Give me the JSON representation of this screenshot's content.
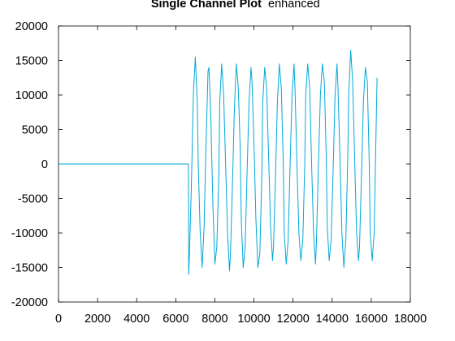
{
  "chart_data": {
    "type": "line",
    "title": "Single Channel Plot",
    "subtitle": "enhanced",
    "xlabel": "",
    "ylabel": "",
    "xlim": [
      0,
      18000
    ],
    "ylim": [
      -20000,
      20000
    ],
    "xticks": [
      0,
      2000,
      4000,
      6000,
      8000,
      10000,
      12000,
      14000,
      16000,
      18000
    ],
    "xtick_labels": [
      "0",
      "2000",
      "4000",
      "6000",
      "8000",
      "10000",
      "12000",
      "14000",
      "16000",
      "18000"
    ],
    "yticks": [
      -20000,
      -15000,
      -10000,
      -5000,
      0,
      5000,
      10000,
      15000,
      20000
    ],
    "ytick_labels": [
      "-20000",
      "-15000",
      "-10000",
      "-5000",
      "0",
      "5000",
      "10000",
      "15000",
      "20000"
    ],
    "grid": false,
    "series_color": "#00a8d8",
    "series": [
      {
        "x": [
          0,
          6650,
          6660,
          6700,
          6800,
          6900,
          7000,
          7100,
          7150,
          7250,
          7350,
          7450,
          7550,
          7650,
          7700,
          7800,
          7900,
          8000,
          8100,
          8200,
          8250,
          8350,
          8450,
          8550,
          8650,
          8750,
          8800,
          8900,
          9000,
          9100,
          9200,
          9300,
          9350,
          9450,
          9550,
          9650,
          9750,
          9850,
          9900,
          10000,
          10100,
          10200,
          10300,
          10400,
          10450,
          10550,
          10650,
          10750,
          10850,
          10950,
          11000,
          11100,
          11200,
          11300,
          11400,
          11500,
          11550,
          11650,
          11750,
          11850,
          11950,
          12050,
          12100,
          12200,
          12300,
          12400,
          12500,
          12600,
          12650,
          12750,
          12850,
          12950,
          13050,
          13150,
          13200,
          13300,
          13400,
          13500,
          13600,
          13700,
          13750,
          13850,
          13950,
          14050,
          14150,
          14250,
          14300,
          14400,
          14500,
          14600,
          14700,
          14800,
          14850,
          14950,
          15050,
          15150,
          15250,
          15350,
          15400,
          15500,
          15600,
          15700,
          15800,
          15900,
          15950,
          16050,
          16150,
          16250,
          16300
        ],
        "y": [
          0,
          0,
          -16000,
          -13000,
          -3000,
          10000,
          15500,
          9000,
          0,
          -10000,
          -15000,
          -9000,
          3000,
          13500,
          14000,
          6000,
          -6000,
          -14500,
          -12000,
          -2000,
          9000,
          14500,
          10000,
          0,
          -10000,
          -15500,
          -13000,
          -3000,
          8000,
          14500,
          11000,
          2000,
          -8000,
          -15000,
          -12000,
          -1000,
          9000,
          14000,
          12000,
          3000,
          -8000,
          -15000,
          -13000,
          -2000,
          9000,
          14000,
          11000,
          1000,
          -9000,
          -14000,
          -12000,
          -2000,
          9000,
          14500,
          11000,
          0,
          -10000,
          -14500,
          -11000,
          0,
          10000,
          14500,
          11000,
          0,
          -10000,
          -14000,
          -11000,
          0,
          10000,
          14500,
          11000,
          0,
          -10000,
          -14500,
          -11000,
          0,
          10000,
          14500,
          12000,
          1000,
          -9000,
          -14000,
          -11000,
          -1000,
          10000,
          14500,
          11000,
          1000,
          -10000,
          -15000,
          -11000,
          1000,
          10000,
          16500,
          12000,
          1000,
          -10000,
          -14000,
          -12000,
          -2000,
          9000,
          14000,
          12000,
          0,
          -10000,
          -14000,
          -10000,
          5000,
          12500
        ]
      }
    ]
  }
}
